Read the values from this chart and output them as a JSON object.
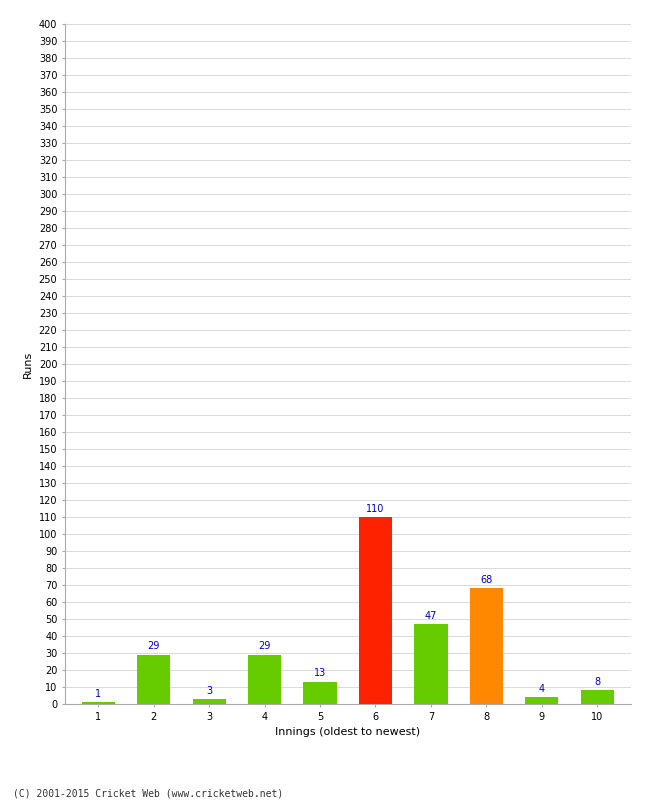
{
  "categories": [
    "1",
    "2",
    "3",
    "4",
    "5",
    "6",
    "7",
    "8",
    "9",
    "10"
  ],
  "values": [
    1,
    29,
    3,
    29,
    13,
    110,
    47,
    68,
    4,
    8
  ],
  "bar_colors": [
    "#66cc00",
    "#66cc00",
    "#66cc00",
    "#66cc00",
    "#66cc00",
    "#ff2200",
    "#66cc00",
    "#ff8800",
    "#66cc00",
    "#66cc00"
  ],
  "xlabel": "Innings (oldest to newest)",
  "ylabel": "Runs",
  "ylim": [
    0,
    400
  ],
  "ytick_step": 10,
  "label_color": "#0000cc",
  "label_fontsize": 7,
  "xlabel_fontsize": 8,
  "ylabel_fontsize": 8,
  "tick_fontsize": 7,
  "background_color": "#ffffff",
  "grid_color": "#cccccc",
  "footer": "(C) 2001-2015 Cricket Web (www.cricketweb.net)"
}
